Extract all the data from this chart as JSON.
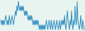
{
  "values": [
    3,
    2,
    3,
    2,
    3,
    2,
    3,
    4,
    3,
    2,
    3,
    2,
    4,
    3,
    2,
    3,
    4,
    3,
    2,
    3,
    4,
    5,
    4,
    6,
    5,
    7,
    6,
    5,
    6,
    5,
    6,
    5,
    6,
    5,
    4,
    5,
    4,
    5,
    4,
    3,
    4,
    3,
    4,
    3,
    4,
    3,
    2,
    3,
    2,
    3,
    2,
    3,
    2,
    3,
    2,
    1,
    2,
    1,
    2,
    1,
    2,
    1,
    2,
    1,
    2,
    3,
    2,
    1,
    2,
    3,
    2,
    1,
    3,
    2,
    1,
    2,
    3,
    2,
    1,
    2,
    3,
    2,
    1,
    2,
    3,
    1,
    2,
    3,
    2,
    3,
    2,
    4,
    2,
    1,
    3,
    5,
    3,
    2,
    1,
    3,
    2,
    5,
    2,
    1,
    3,
    2,
    6,
    3,
    2,
    7,
    3,
    2,
    1,
    2,
    4,
    2,
    1,
    3,
    2,
    1
  ],
  "line_color": "#2b8cbf",
  "background_color": "#e8f4f0",
  "linewidth": 0.7
}
